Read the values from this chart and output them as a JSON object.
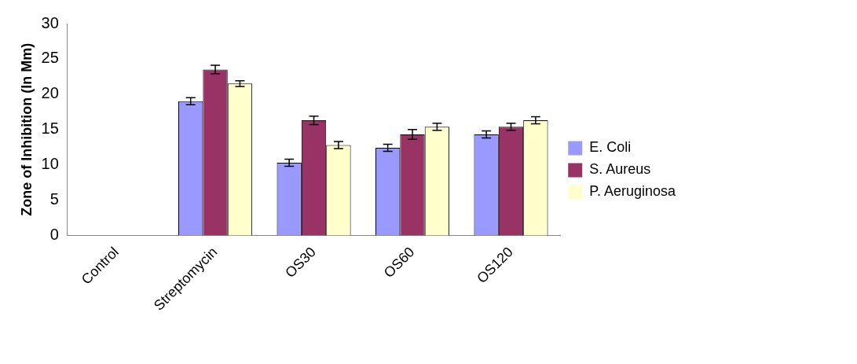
{
  "chart_data": {
    "type": "bar",
    "ylabel": "Zone of Inhibition (In Mm)",
    "categories": [
      "Control",
      "Streptomycin",
      "OS30",
      "OS60",
      "OS120"
    ],
    "series": [
      {
        "name": "E. Coli",
        "color": "#9999ff",
        "values": [
          0,
          19,
          10.3,
          12.4,
          14.3
        ],
        "errors": [
          null,
          0.5,
          0.5,
          0.5,
          0.5
        ]
      },
      {
        "name": "S. Aureus",
        "color": "#993366",
        "values": [
          0,
          23.5,
          16.3,
          14.3,
          15.4
        ],
        "errors": [
          null,
          0.6,
          0.6,
          0.7,
          0.5
        ]
      },
      {
        "name": "P. Aeruginosa",
        "color": "#ffffcc",
        "values": [
          0,
          21.5,
          12.8,
          15.4,
          16.3
        ],
        "errors": [
          null,
          0.4,
          0.5,
          0.5,
          0.5
        ]
      }
    ],
    "ylim": [
      0,
      30
    ],
    "yticks": [
      0,
      5,
      10,
      15,
      20,
      25,
      30
    ],
    "grid": false,
    "legend": "right"
  }
}
